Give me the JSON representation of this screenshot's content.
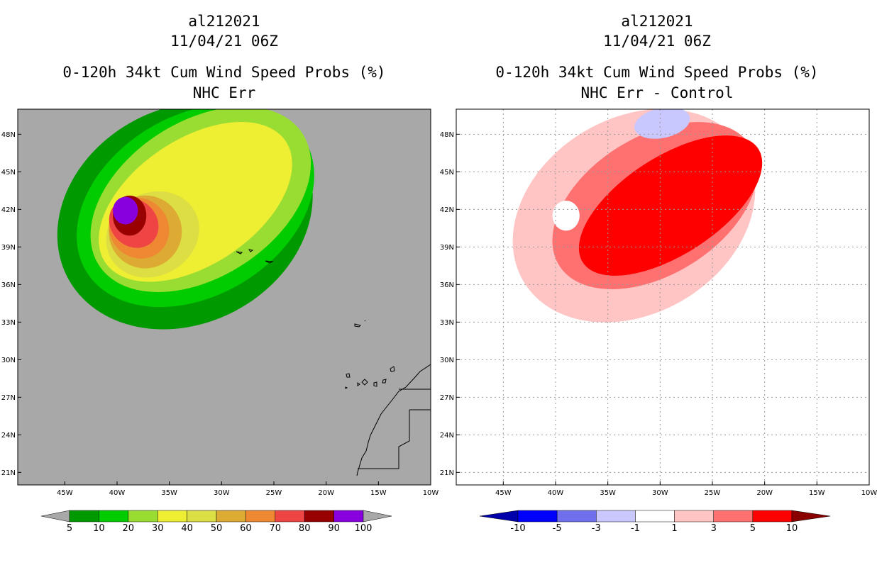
{
  "chart_data": [
    {
      "type": "heatmap",
      "title_lines": [
        "al212021",
        "11/04/21 06Z",
        "0-120h 34kt Cum Wind Speed Probs (%)",
        "NHC Err"
      ],
      "background": "#a8a8a8",
      "x_ticks": [
        {
          "value": -45,
          "label": "45W"
        },
        {
          "value": -40,
          "label": "40W"
        },
        {
          "value": -35,
          "label": "35W"
        },
        {
          "value": -30,
          "label": "30W"
        },
        {
          "value": -25,
          "label": "25W"
        },
        {
          "value": -20,
          "label": "20W"
        },
        {
          "value": -15,
          "label": "15W"
        },
        {
          "value": -10,
          "label": "10W"
        }
      ],
      "y_ticks": [
        {
          "value": 48,
          "label": "48N"
        },
        {
          "value": 45,
          "label": "45N"
        },
        {
          "value": 42,
          "label": "42N"
        },
        {
          "value": 39,
          "label": "39N"
        },
        {
          "value": 36,
          "label": "36N"
        },
        {
          "value": 33,
          "label": "33N"
        },
        {
          "value": 30,
          "label": "30N"
        },
        {
          "value": 27,
          "label": "27N"
        },
        {
          "value": 24,
          "label": "24N"
        },
        {
          "value": 21,
          "label": "21N"
        }
      ],
      "xlim": [
        -49.5,
        -10
      ],
      "ylim": [
        20,
        50
      ],
      "grid": false,
      "colorbar": {
        "boundaries": [
          "5",
          "10",
          "20",
          "30",
          "40",
          "50",
          "60",
          "70",
          "80",
          "90",
          "100"
        ],
        "colors": [
          "#009900",
          "#00cc00",
          "#99dd33",
          "#eeee33",
          "#dddd44",
          "#ddaa33",
          "#ee8833",
          "#ee4444",
          "#990000",
          "#8800dd"
        ],
        "extend_color": "#a8a8a8"
      },
      "levels": [
        {
          "value": 5,
          "color": "#009900",
          "center": [
            -33.5,
            41.5
          ],
          "rx": 12.7,
          "ry": 8.6,
          "rot": -28
        },
        {
          "value": 10,
          "color": "#00cc00",
          "center": [
            -32.5,
            42.3
          ],
          "rx": 12.2,
          "ry": 7.2,
          "rot": -31
        },
        {
          "value": 20,
          "color": "#99dd33",
          "center": [
            -32.0,
            42.8
          ],
          "rx": 11.6,
          "ry": 6.2,
          "rot": -33
        },
        {
          "value": 30,
          "color": "#eeee33",
          "center": [
            -32.5,
            42.6
          ],
          "rx": 10.4,
          "ry": 5.0,
          "rot": -34
        },
        {
          "value": 40,
          "color": "#dddd44",
          "center": [
            -36.6,
            40.0
          ],
          "rx": 4.6,
          "ry": 3.3,
          "rot": -30
        },
        {
          "value": 50,
          "color": "#ddaa33",
          "center": [
            -37.3,
            40.2
          ],
          "rx": 3.5,
          "ry": 2.9,
          "rot": -35
        },
        {
          "value": 60,
          "color": "#ee8833",
          "center": [
            -37.9,
            40.5
          ],
          "rx": 2.8,
          "ry": 2.5,
          "rot": -40
        },
        {
          "value": 70,
          "color": "#ee4444",
          "center": [
            -38.4,
            40.9
          ],
          "rx": 2.2,
          "ry": 2.1,
          "rot": -45
        },
        {
          "value": 80,
          "color": "#990000",
          "center": [
            -38.8,
            41.5
          ],
          "rx": 1.6,
          "ry": 1.6,
          "rot": 0
        },
        {
          "value": 90,
          "color": "#8800dd",
          "center": [
            -39.2,
            41.9
          ],
          "rx": 1.2,
          "ry": 1.1,
          "rot": 0
        }
      ]
    },
    {
      "type": "heatmap",
      "title_lines": [
        "al212021",
        "11/04/21 06Z",
        "0-120h 34kt Cum Wind Speed Probs (%)",
        "NHC Err - Control"
      ],
      "background": "#ffffff",
      "x_ticks": [
        {
          "value": -45,
          "label": "45W"
        },
        {
          "value": -40,
          "label": "40W"
        },
        {
          "value": -35,
          "label": "35W"
        },
        {
          "value": -30,
          "label": "30W"
        },
        {
          "value": -25,
          "label": "25W"
        },
        {
          "value": -20,
          "label": "20W"
        },
        {
          "value": -15,
          "label": "15W"
        },
        {
          "value": -10,
          "label": "10W"
        }
      ],
      "y_ticks": [
        {
          "value": 48,
          "label": "48N"
        },
        {
          "value": 45,
          "label": "45N"
        },
        {
          "value": 42,
          "label": "42N"
        },
        {
          "value": 39,
          "label": "39N"
        },
        {
          "value": 36,
          "label": "36N"
        },
        {
          "value": 33,
          "label": "33N"
        },
        {
          "value": 30,
          "label": "30N"
        },
        {
          "value": 27,
          "label": "27N"
        },
        {
          "value": 24,
          "label": "24N"
        },
        {
          "value": 21,
          "label": "21N"
        }
      ],
      "xlim": [
        -49.5,
        -10
      ],
      "ylim": [
        20,
        50
      ],
      "grid": true,
      "colorbar": {
        "boundaries": [
          "-10",
          "-5",
          "-3",
          "-1",
          "1",
          "3",
          "5",
          "10"
        ],
        "colors": [
          "#0000ff",
          "#7070ee",
          "#c8c8ff",
          "#ffffff",
          "#ffc4c4",
          "#ff7070",
          "#ff0000"
        ],
        "extend_low_color": "#0000aa",
        "extend_high_color": "#880000"
      },
      "levels": [
        {
          "value": 1,
          "color": "#ffc4c4",
          "center": [
            -32.5,
            41.5
          ],
          "rx": 12.3,
          "ry": 7.8,
          "rot": -31
        },
        {
          "value": 3,
          "color": "#ff7070",
          "center": [
            -30.5,
            42.3
          ],
          "rx": 10.8,
          "ry": 5.5,
          "rot": -32
        },
        {
          "value": 5,
          "color": "#ff0000",
          "center": [
            -29.0,
            42.3
          ],
          "rx": 10.0,
          "ry": 3.9,
          "rot": -33
        },
        {
          "value": -1,
          "color": "#ffffff",
          "center": [
            -39.0,
            41.5
          ],
          "rx": 1.3,
          "ry": 1.2,
          "rot": 0
        },
        {
          "value": -3,
          "color": "#c8c8ff",
          "center": [
            -29.8,
            48.9
          ],
          "rx": 2.7,
          "ry": 1.2,
          "rot": -12
        }
      ]
    }
  ]
}
